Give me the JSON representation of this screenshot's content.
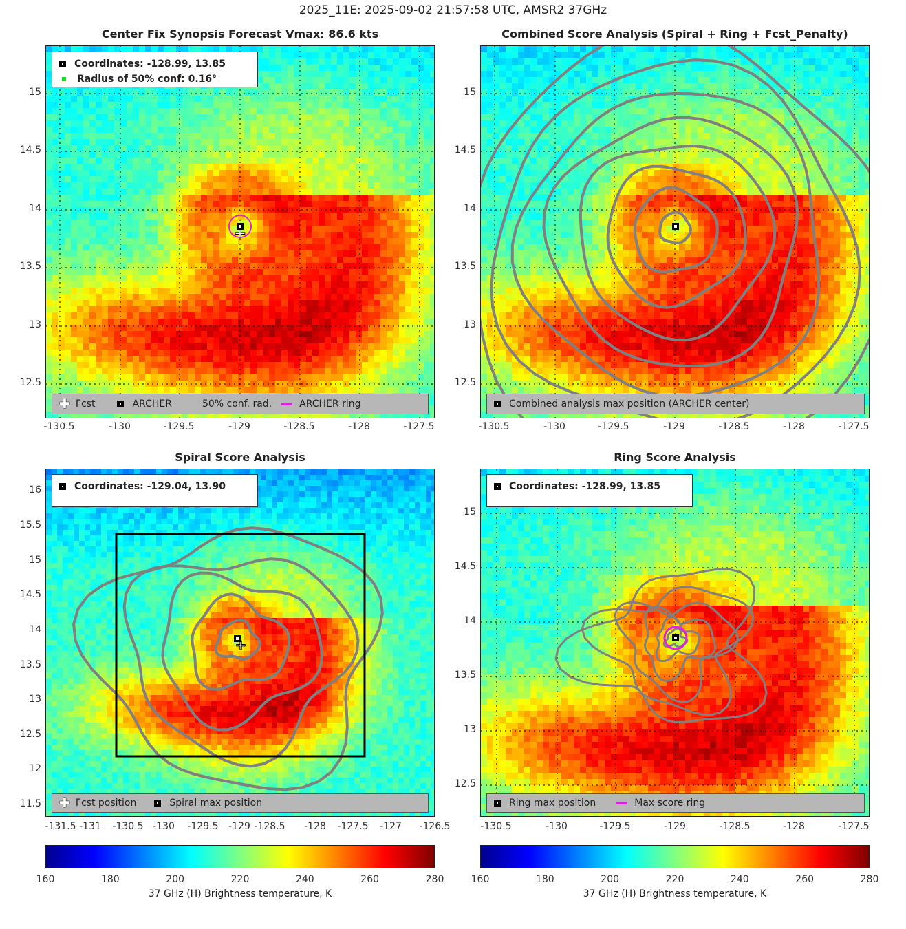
{
  "suptitle": "2025_11E: 2025-09-02 21:57:58 UTC, AMSR2 37GHz",
  "panels": {
    "synopsis": {
      "title": "Center Fix Synopsis     Forecast Vmax: 86.6 kts",
      "info_coords": "Coordinates: -128.99, 13.85",
      "info_radius": "Radius of 50% conf: 0.16°",
      "legend_fcst": "Fcst",
      "legend_archer": "ARCHER",
      "legend_conf": "50% conf. rad.",
      "legend_ring": "ARCHER ring",
      "xticks": [
        "-130.5",
        "-130",
        "-129.5",
        "-129",
        "-128.5",
        "-128",
        "-127.5"
      ],
      "yticks": [
        "15",
        "14.5",
        "14",
        "13.5",
        "13",
        "12.5"
      ]
    },
    "combined": {
      "title": "Combined Score Analysis (Spiral + Ring + Fcst_Penalty)",
      "legend_max": "Combined analysis max position (ARCHER center)",
      "xticks": [
        "-130.5",
        "-130",
        "-129.5",
        "-129",
        "-128.5",
        "-128",
        "-127.5"
      ],
      "yticks": [
        "15",
        "14.5",
        "14",
        "13.5",
        "13",
        "12.5"
      ]
    },
    "spiral": {
      "title": "Spiral Score Analysis",
      "info_coords": "Coordinates: -129.04, 13.90",
      "legend_fcst": "Fcst position",
      "legend_max": "Spiral max position",
      "xticks": [
        "-131.5",
        "-131",
        "-130.5",
        "-130",
        "-129.5",
        "-129",
        "-128.5",
        "-128",
        "-127.5",
        "-127",
        "-126.5"
      ],
      "yticks": [
        "16",
        "15.5",
        "15",
        "14.5",
        "14",
        "13.5",
        "13",
        "12.5",
        "12",
        "11.5"
      ]
    },
    "ring": {
      "title": "Ring Score Analysis",
      "info_coords": "Coordinates: -128.99, 13.85",
      "legend_max": "Ring max position",
      "legend_ring": "Max score ring",
      "xticks": [
        "-130.5",
        "-130",
        "-129.5",
        "-129",
        "-128.5",
        "-128",
        "-127.5"
      ],
      "yticks": [
        "15",
        "14.5",
        "14",
        "13.5",
        "13",
        "12.5"
      ]
    }
  },
  "colorbar": {
    "ticks": [
      "160",
      "180",
      "200",
      "220",
      "240",
      "260",
      "280"
    ],
    "label": "37 GHz (H) Brightness temperature, K"
  },
  "chart_data": [
    {
      "type": "heatmap",
      "title": "Center Fix Synopsis     Forecast Vmax: 86.6 kts",
      "xlim": [
        -130.65,
        -127.45
      ],
      "ylim": [
        12.25,
        15.4
      ],
      "center": [
        -128.99,
        13.85
      ],
      "fcst": [
        -128.99,
        13.8
      ],
      "clim": [
        160,
        280
      ],
      "grid": true
    },
    {
      "type": "heatmap",
      "title": "Combined Score Analysis (Spiral + Ring + Fcst_Penalty)",
      "xlim": [
        -130.65,
        -127.45
      ],
      "ylim": [
        12.25,
        15.4
      ],
      "center": [
        -128.99,
        13.85
      ],
      "clim": [
        160,
        280
      ],
      "grid": true
    },
    {
      "type": "heatmap",
      "title": "Spiral Score Analysis",
      "xlim": [
        -131.65,
        -126.5
      ],
      "ylim": [
        11.35,
        16.35
      ],
      "center": [
        -129.04,
        13.9
      ],
      "fcst": [
        -128.99,
        13.8
      ],
      "clim": [
        160,
        280
      ],
      "grid": false
    },
    {
      "type": "heatmap",
      "title": "Ring Score Analysis",
      "xlim": [
        -130.65,
        -127.45
      ],
      "ylim": [
        12.25,
        15.4
      ],
      "center": [
        -128.99,
        13.85
      ],
      "clim": [
        160,
        280
      ],
      "grid": true
    }
  ]
}
